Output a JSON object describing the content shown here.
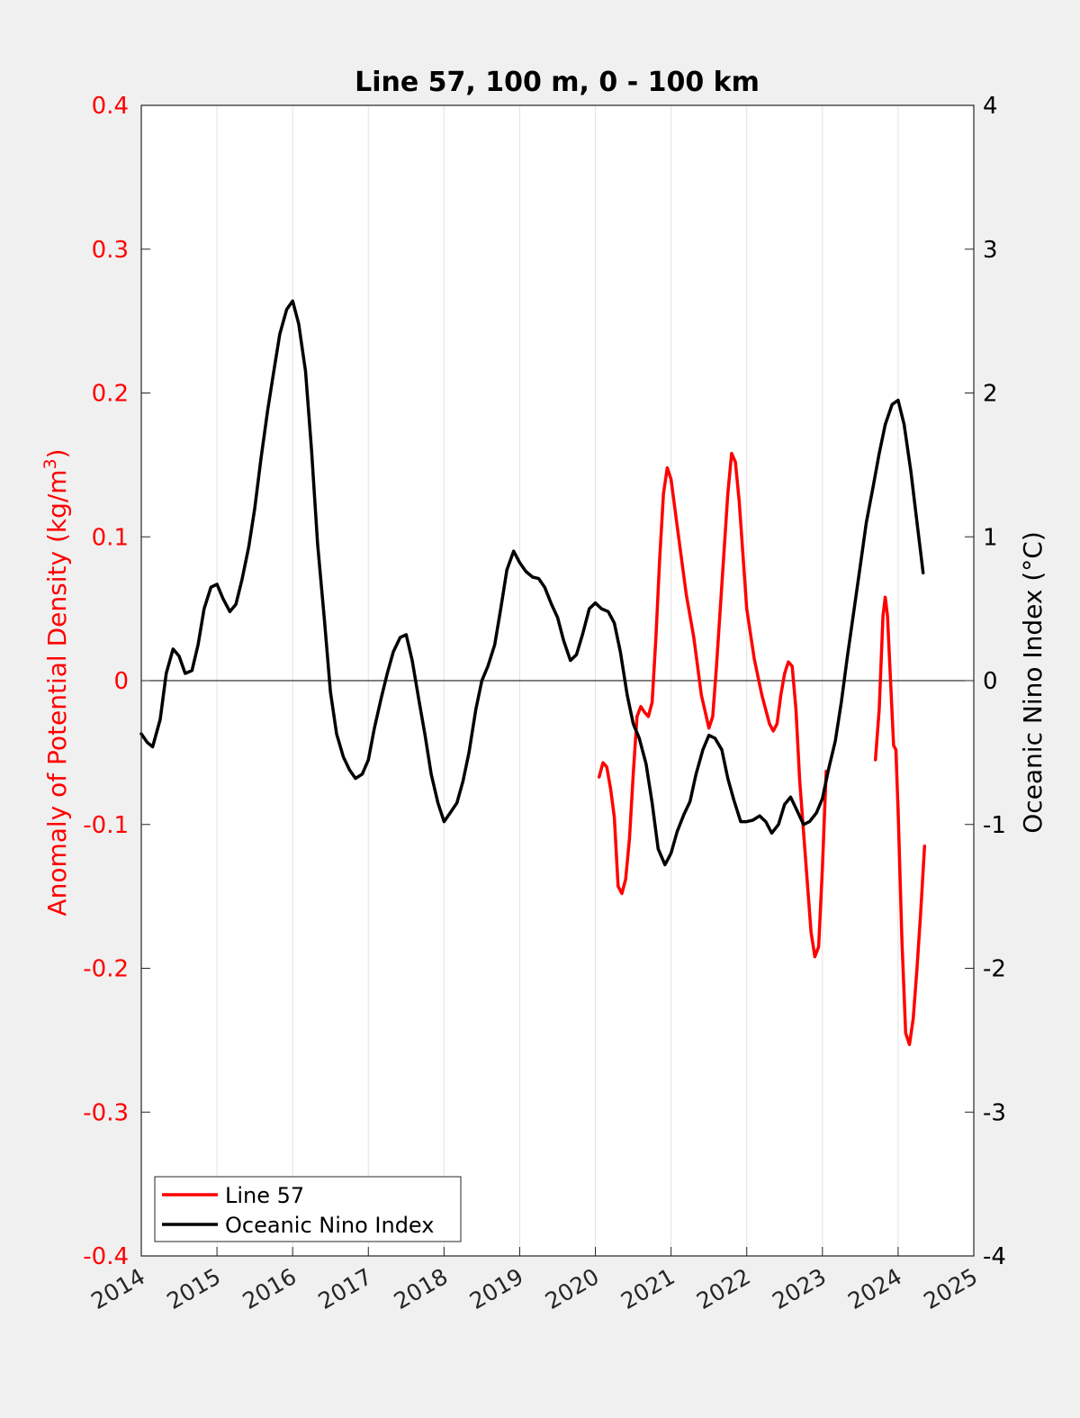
{
  "chart_data": {
    "type": "line",
    "title": "Line 57, 100 m, 0 - 100 km",
    "xlabel": "",
    "ylabel_left": "Anomaly of Potential Density (kg/m",
    "ylabel_left_sup": "3",
    "ylabel_left_close": ")",
    "ylabel_right": "Oceanic Nino Index (°C)",
    "xlim": [
      2014,
      2025
    ],
    "ylim_left": [
      -0.4,
      0.4
    ],
    "ylim_right": [
      -4,
      4
    ],
    "x_ticks": [
      2014,
      2015,
      2016,
      2017,
      2018,
      2019,
      2020,
      2021,
      2022,
      2023,
      2024,
      2025
    ],
    "y_ticks_left": [
      "-0.4",
      "-0.3",
      "-0.2",
      "-0.1",
      "0",
      "0.1",
      "0.2",
      "0.3",
      "0.4"
    ],
    "y_ticks_right": [
      "-4",
      "-3",
      "-2",
      "-1",
      "0",
      "1",
      "2",
      "3",
      "4"
    ],
    "x_grid": true,
    "zero_line": true,
    "legend_position": "bottom-left",
    "colors": {
      "line57": "#ff0000",
      "oni": "#000000",
      "left_axis": "#ff0000",
      "right_axis": "#000000"
    },
    "series": [
      {
        "name": "Line 57",
        "axis": "left",
        "color": "#ff0000",
        "segments": [
          [
            [
              2020.05,
              -0.067
            ],
            [
              2020.1,
              -0.057
            ],
            [
              2020.15,
              -0.06
            ],
            [
              2020.2,
              -0.075
            ],
            [
              2020.25,
              -0.095
            ],
            [
              2020.3,
              -0.143
            ],
            [
              2020.35,
              -0.148
            ],
            [
              2020.4,
              -0.138
            ],
            [
              2020.45,
              -0.11
            ],
            [
              2020.5,
              -0.065
            ],
            [
              2020.55,
              -0.025
            ],
            [
              2020.6,
              -0.018
            ],
            [
              2020.65,
              -0.022
            ],
            [
              2020.7,
              -0.025
            ],
            [
              2020.75,
              -0.015
            ],
            [
              2020.8,
              0.03
            ],
            [
              2020.85,
              0.085
            ],
            [
              2020.9,
              0.13
            ],
            [
              2020.95,
              0.148
            ],
            [
              2021.0,
              0.14
            ],
            [
              2021.1,
              0.1
            ],
            [
              2021.2,
              0.06
            ],
            [
              2021.3,
              0.03
            ],
            [
              2021.4,
              -0.01
            ],
            [
              2021.5,
              -0.033
            ],
            [
              2021.55,
              -0.025
            ],
            [
              2021.6,
              0.01
            ],
            [
              2021.7,
              0.09
            ],
            [
              2021.75,
              0.13
            ],
            [
              2021.8,
              0.158
            ],
            [
              2021.85,
              0.152
            ],
            [
              2021.9,
              0.125
            ],
            [
              2022.0,
              0.05
            ],
            [
              2022.1,
              0.015
            ],
            [
              2022.2,
              -0.01
            ],
            [
              2022.3,
              -0.03
            ],
            [
              2022.35,
              -0.035
            ],
            [
              2022.4,
              -0.03
            ],
            [
              2022.45,
              -0.01
            ],
            [
              2022.5,
              0.005
            ],
            [
              2022.55,
              0.013
            ],
            [
              2022.6,
              0.01
            ],
            [
              2022.65,
              -0.02
            ],
            [
              2022.7,
              -0.07
            ],
            [
              2022.8,
              -0.14
            ],
            [
              2022.85,
              -0.175
            ],
            [
              2022.9,
              -0.192
            ],
            [
              2022.95,
              -0.185
            ],
            [
              2023.0,
              -0.13
            ],
            [
              2023.05,
              -0.063
            ]
          ],
          [
            [
              2023.7,
              -0.055
            ],
            [
              2023.75,
              -0.02
            ],
            [
              2023.8,
              0.045
            ],
            [
              2023.83,
              0.058
            ],
            [
              2023.86,
              0.045
            ],
            [
              2023.9,
              0.0
            ],
            [
              2023.94,
              -0.045
            ],
            [
              2023.97,
              -0.048
            ],
            [
              2024.0,
              -0.09
            ],
            [
              2024.05,
              -0.18
            ],
            [
              2024.1,
              -0.245
            ],
            [
              2024.15,
              -0.253
            ],
            [
              2024.2,
              -0.235
            ],
            [
              2024.25,
              -0.2
            ],
            [
              2024.3,
              -0.16
            ],
            [
              2024.35,
              -0.115
            ]
          ]
        ]
      },
      {
        "name": "Oceanic Nino Index",
        "axis": "right",
        "color": "#000000",
        "segments": [
          [
            [
              2014.0,
              -0.37
            ],
            [
              2014.08,
              -0.43
            ],
            [
              2014.15,
              -0.46
            ],
            [
              2014.25,
              -0.27
            ],
            [
              2014.33,
              0.05
            ],
            [
              2014.42,
              0.22
            ],
            [
              2014.5,
              0.17
            ],
            [
              2014.58,
              0.05
            ],
            [
              2014.67,
              0.07
            ],
            [
              2014.75,
              0.25
            ],
            [
              2014.83,
              0.5
            ],
            [
              2014.92,
              0.65
            ],
            [
              2015.0,
              0.67
            ],
            [
              2015.08,
              0.57
            ],
            [
              2015.17,
              0.48
            ],
            [
              2015.25,
              0.53
            ],
            [
              2015.33,
              0.7
            ],
            [
              2015.42,
              0.93
            ],
            [
              2015.5,
              1.2
            ],
            [
              2015.58,
              1.54
            ],
            [
              2015.67,
              1.88
            ],
            [
              2015.75,
              2.15
            ],
            [
              2015.83,
              2.41
            ],
            [
              2015.92,
              2.58
            ],
            [
              2016.0,
              2.64
            ],
            [
              2016.08,
              2.48
            ],
            [
              2016.17,
              2.15
            ],
            [
              2016.25,
              1.6
            ],
            [
              2016.33,
              0.95
            ],
            [
              2016.42,
              0.42
            ],
            [
              2016.5,
              -0.08
            ],
            [
              2016.58,
              -0.37
            ],
            [
              2016.67,
              -0.53
            ],
            [
              2016.75,
              -0.62
            ],
            [
              2016.83,
              -0.68
            ],
            [
              2016.92,
              -0.65
            ],
            [
              2017.0,
              -0.55
            ],
            [
              2017.08,
              -0.33
            ],
            [
              2017.17,
              -0.12
            ],
            [
              2017.25,
              0.05
            ],
            [
              2017.33,
              0.2
            ],
            [
              2017.42,
              0.3
            ],
            [
              2017.5,
              0.32
            ],
            [
              2017.58,
              0.14
            ],
            [
              2017.67,
              -0.14
            ],
            [
              2017.75,
              -0.38
            ],
            [
              2017.83,
              -0.65
            ],
            [
              2017.92,
              -0.85
            ],
            [
              2018.0,
              -0.98
            ],
            [
              2018.08,
              -0.92
            ],
            [
              2018.17,
              -0.85
            ],
            [
              2018.25,
              -0.7
            ],
            [
              2018.33,
              -0.5
            ],
            [
              2018.42,
              -0.2
            ],
            [
              2018.5,
              0.0
            ],
            [
              2018.58,
              0.1
            ],
            [
              2018.67,
              0.25
            ],
            [
              2018.75,
              0.5
            ],
            [
              2018.83,
              0.77
            ],
            [
              2018.92,
              0.9
            ],
            [
              2019.0,
              0.82
            ],
            [
              2019.08,
              0.76
            ],
            [
              2019.17,
              0.72
            ],
            [
              2019.25,
              0.71
            ],
            [
              2019.33,
              0.65
            ],
            [
              2019.42,
              0.53
            ],
            [
              2019.5,
              0.44
            ],
            [
              2019.58,
              0.28
            ],
            [
              2019.67,
              0.14
            ],
            [
              2019.75,
              0.18
            ],
            [
              2019.83,
              0.32
            ],
            [
              2019.92,
              0.5
            ],
            [
              2020.0,
              0.54
            ],
            [
              2020.08,
              0.5
            ],
            [
              2020.17,
              0.48
            ],
            [
              2020.25,
              0.4
            ],
            [
              2020.33,
              0.2
            ],
            [
              2020.42,
              -0.1
            ],
            [
              2020.5,
              -0.3
            ],
            [
              2020.58,
              -0.4
            ],
            [
              2020.67,
              -0.58
            ],
            [
              2020.75,
              -0.85
            ],
            [
              2020.83,
              -1.17
            ],
            [
              2020.92,
              -1.28
            ],
            [
              2021.0,
              -1.2
            ],
            [
              2021.08,
              -1.05
            ],
            [
              2021.17,
              -0.93
            ],
            [
              2021.25,
              -0.84
            ],
            [
              2021.33,
              -0.65
            ],
            [
              2021.42,
              -0.48
            ],
            [
              2021.5,
              -0.38
            ],
            [
              2021.58,
              -0.4
            ],
            [
              2021.67,
              -0.48
            ],
            [
              2021.75,
              -0.68
            ],
            [
              2021.83,
              -0.83
            ],
            [
              2021.92,
              -0.98
            ],
            [
              2022.0,
              -0.98
            ],
            [
              2022.08,
              -0.97
            ],
            [
              2022.17,
              -0.94
            ],
            [
              2022.25,
              -0.98
            ],
            [
              2022.33,
              -1.06
            ],
            [
              2022.42,
              -1.0
            ],
            [
              2022.5,
              -0.86
            ],
            [
              2022.58,
              -0.81
            ],
            [
              2022.67,
              -0.91
            ],
            [
              2022.75,
              -1.0
            ],
            [
              2022.83,
              -0.98
            ],
            [
              2022.92,
              -0.92
            ],
            [
              2023.0,
              -0.82
            ],
            [
              2023.08,
              -0.62
            ],
            [
              2023.17,
              -0.42
            ],
            [
              2023.25,
              -0.15
            ],
            [
              2023.33,
              0.17
            ],
            [
              2023.42,
              0.5
            ],
            [
              2023.5,
              0.8
            ],
            [
              2023.58,
              1.1
            ],
            [
              2023.67,
              1.35
            ],
            [
              2023.75,
              1.58
            ],
            [
              2023.83,
              1.78
            ],
            [
              2023.92,
              1.92
            ],
            [
              2024.0,
              1.95
            ],
            [
              2024.08,
              1.78
            ],
            [
              2024.17,
              1.45
            ],
            [
              2024.25,
              1.1
            ],
            [
              2024.33,
              0.75
            ]
          ]
        ]
      }
    ]
  }
}
